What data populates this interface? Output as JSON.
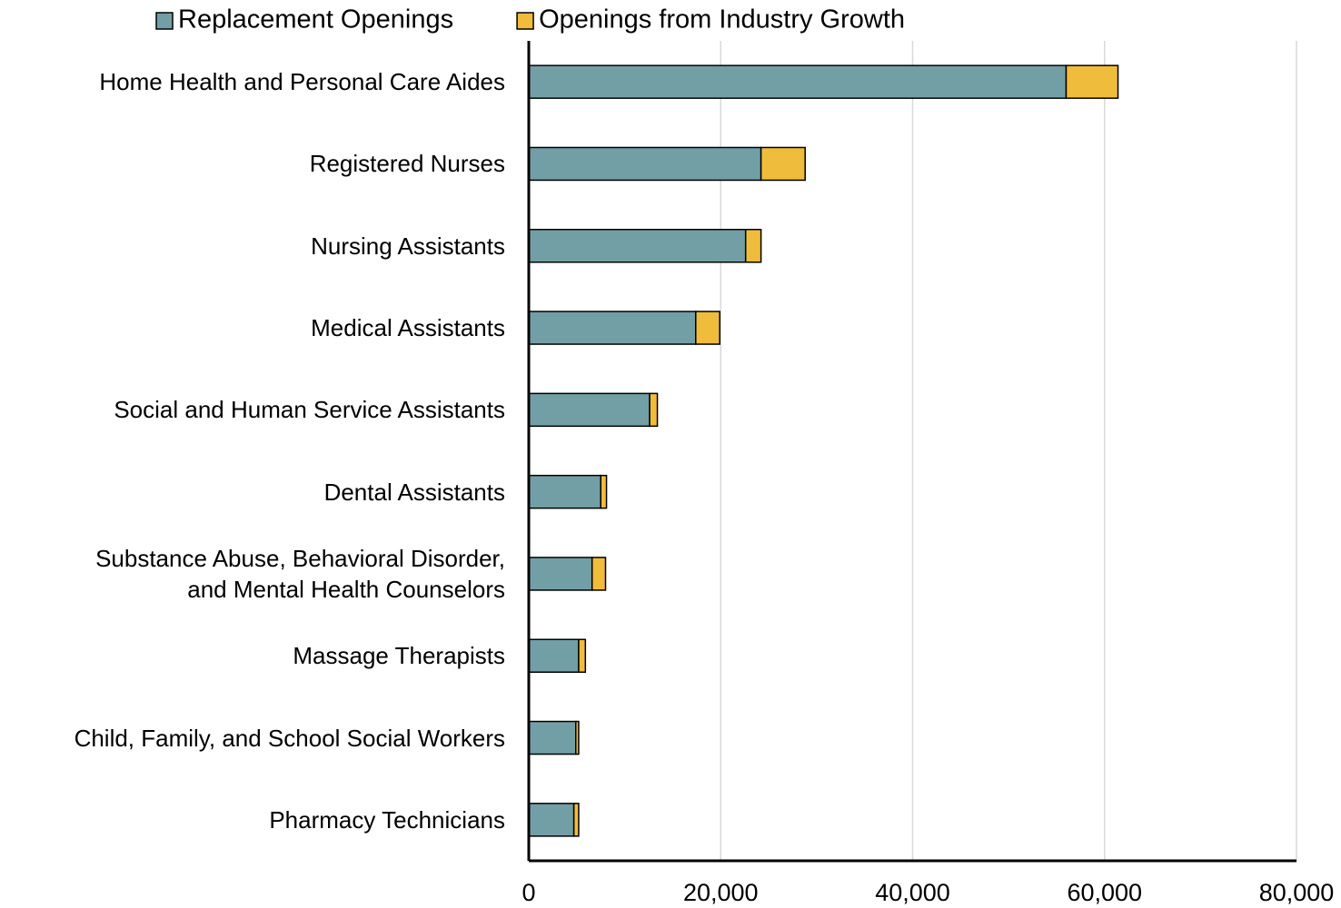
{
  "chart_data": {
    "type": "bar",
    "orientation": "horizontal",
    "stacked": true,
    "categories": [
      "Home Health and Personal Care Aides",
      "Registered Nurses",
      "Nursing Assistants",
      "Medical Assistants",
      "Social and Human Service Assistants",
      "Dental Assistants",
      "Substance Abuse, Behavioral Disorder,\nand Mental Health Counselors",
      "Massage Therapists",
      "Child, Family, and School Social Workers",
      "Pharmacy Technicians"
    ],
    "series": [
      {
        "name": "Replacement Openings",
        "color": "#729fa6",
        "values": [
          56000,
          24200,
          22600,
          17400,
          12600,
          7500,
          6600,
          5200,
          4900,
          4700
        ]
      },
      {
        "name": "Openings from Industry Growth",
        "color": "#f0bc3c",
        "values": [
          5400,
          4600,
          1600,
          2500,
          800,
          600,
          1400,
          700,
          300,
          500
        ]
      }
    ],
    "xlim": [
      0,
      80000
    ],
    "xticks": [
      0,
      {
        "value": 20000,
        "label": "20,000"
      },
      {
        "value": 40000,
        "label": "40,000"
      },
      {
        "value": 60000,
        "label": "60,000"
      },
      {
        "value": 80000,
        "label": "80,000"
      }
    ],
    "grid": true,
    "legend": "top"
  }
}
